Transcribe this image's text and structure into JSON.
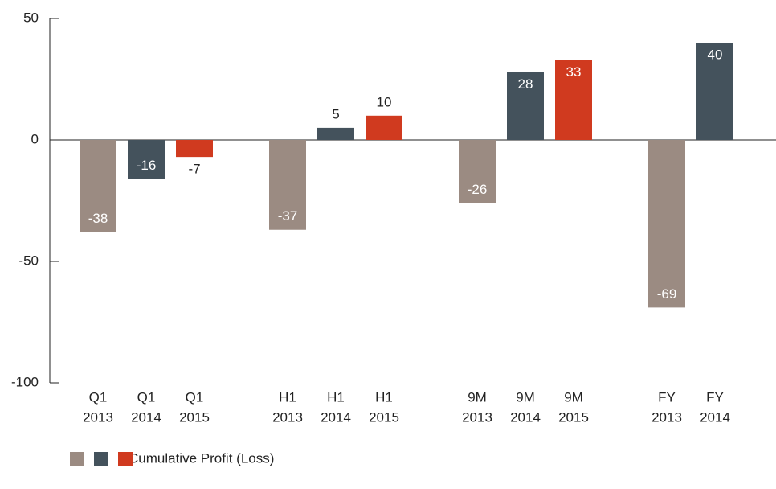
{
  "chart_data": {
    "type": "bar",
    "categories": [
      "Q1",
      "H1",
      "9M",
      "FY"
    ],
    "series": [
      {
        "name": "2013",
        "color": "#9b8b82",
        "values": [
          -38,
          -37,
          -26,
          -69
        ]
      },
      {
        "name": "2014",
        "color": "#44525c",
        "values": [
          -16,
          5,
          28,
          40
        ]
      },
      {
        "name": "2015",
        "color": "#d03a1f",
        "values": [
          -7,
          10,
          33,
          null
        ]
      }
    ],
    "legend_label": "Cumulative Profit (Loss)",
    "ylim": [
      -100,
      50
    ],
    "yticks": [
      -100,
      -50,
      0,
      50
    ]
  }
}
